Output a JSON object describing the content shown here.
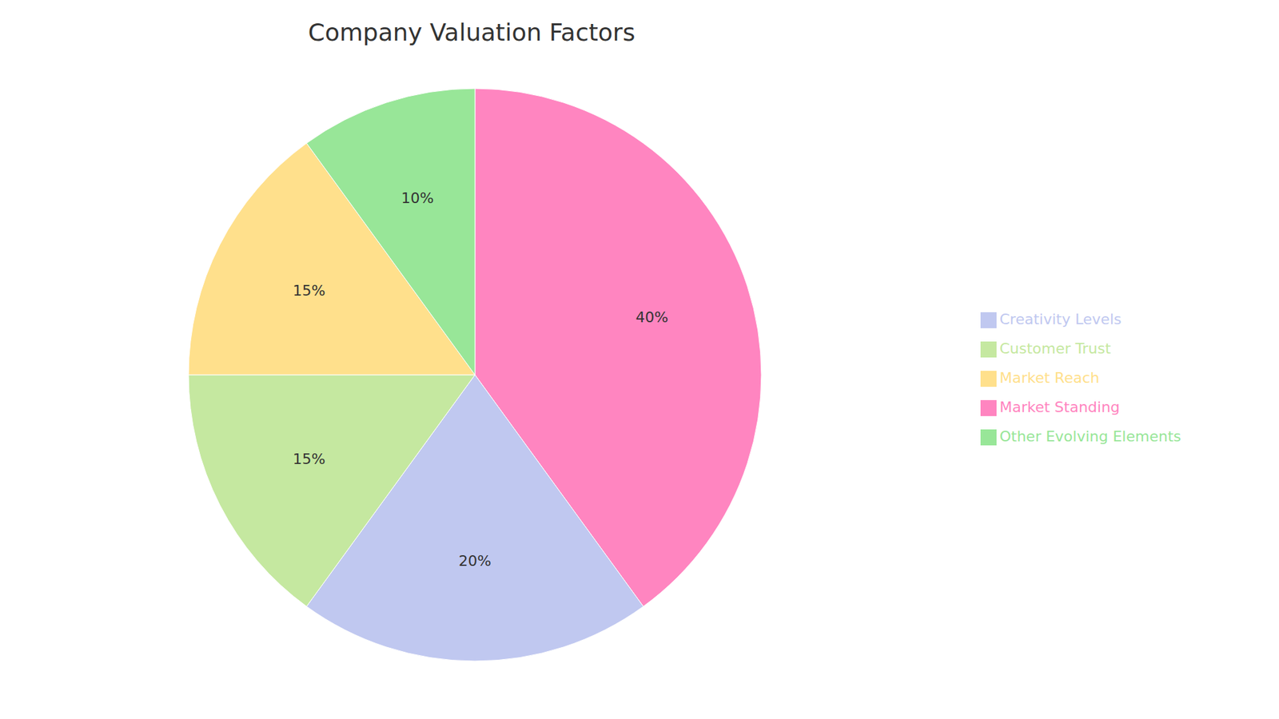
{
  "chart_data": {
    "type": "pie",
    "title": "Company Valuation Factors",
    "categories": [
      "Market Standing",
      "Creativity Levels",
      "Customer Trust",
      "Market Reach",
      "Other Evolving Elements"
    ],
    "values": [
      40,
      20,
      15,
      15,
      10
    ],
    "value_labels": [
      "40%",
      "20%",
      "15%",
      "15%",
      "10%"
    ],
    "colors": [
      "#FF85C0",
      "#C0C8F0",
      "#C5E8A0",
      "#FFE08C",
      "#98E698"
    ],
    "data_labels": true,
    "legend": "right"
  }
}
